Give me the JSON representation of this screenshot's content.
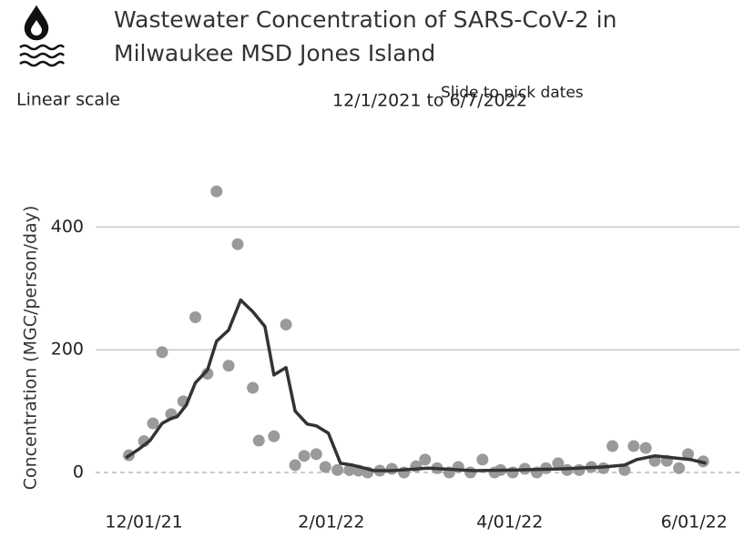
{
  "chart_data": {
    "type": "line",
    "title_lines": [
      "Wastewater Concentration of SARS-CoV-2 in",
      "Milwaukee MSD Jones Island"
    ],
    "scale_label": "Linear scale",
    "date_range": "12/1/2021 to 6/7/2022",
    "slider_label": "Slide to pick dates",
    "y_label": "Concentration (MGC/person/day)",
    "xlim": [
      "11/15/21",
      "06/16/22"
    ],
    "xticks": [
      "12/01/21",
      "2/01/22",
      "4/01/22",
      "6/01/22"
    ],
    "ylim": [
      -40,
      500
    ],
    "yticks": [
      0,
      200,
      400
    ],
    "grid": true,
    "series": [
      {
        "type": "scatter",
        "color": "#9a9a9a",
        "x": [
          "11/26/21",
          "12/01/21",
          "12/04/21",
          "12/07/21",
          "12/10/21",
          "12/14/21",
          "12/18/21",
          "12/22/21",
          "12/25/21",
          "12/29/21",
          "01/01/22",
          "01/06/22",
          "01/08/22",
          "01/13/22",
          "01/17/22",
          "01/20/22",
          "01/23/22",
          "01/27/22",
          "01/30/22",
          "02/03/22",
          "02/07/22",
          "02/10/22",
          "02/13/22",
          "02/17/22",
          "02/21/22",
          "02/25/22",
          "03/01/22",
          "03/04/22",
          "03/08/22",
          "03/12/22",
          "03/15/22",
          "03/19/22",
          "03/23/22",
          "03/27/22",
          "03/29/22",
          "04/02/22",
          "04/06/22",
          "04/10/22",
          "04/13/22",
          "04/17/22",
          "04/20/22",
          "04/24/22",
          "04/28/22",
          "05/02/22",
          "05/05/22",
          "05/09/22",
          "05/12/22",
          "05/16/22",
          "05/19/22",
          "05/23/22",
          "05/27/22",
          "05/30/22",
          "06/04/22"
        ],
        "values": [
          28,
          51,
          80,
          196,
          95,
          116,
          253,
          161,
          458,
          174,
          372,
          138,
          52,
          59,
          241,
          12,
          27,
          30,
          9,
          4,
          4,
          3,
          0,
          3,
          6,
          0,
          10,
          21,
          7,
          0,
          9,
          0,
          21,
          0,
          4,
          0,
          6,
          0,
          7,
          15,
          4,
          4,
          9,
          7,
          43,
          4,
          43,
          40,
          19,
          19,
          7,
          30,
          18
        ]
      },
      {
        "type": "line",
        "color": "#333333",
        "x": [
          "11/25/21",
          "11/29/21",
          "12/03/21",
          "12/07/21",
          "12/10/21",
          "12/12/21",
          "12/15/21",
          "12/18/21",
          "12/22/21",
          "12/25/21",
          "12/29/21",
          "01/02/22",
          "01/06/22",
          "01/10/22",
          "01/13/22",
          "01/17/22",
          "01/20/22",
          "01/24/22",
          "01/27/22",
          "01/31/22",
          "02/04/22",
          "02/08/22",
          "02/12/22",
          "02/15/22",
          "02/21/22",
          "03/05/22",
          "03/20/22",
          "04/04/22",
          "04/19/22",
          "05/02/22",
          "05/09/22",
          "05/13/22",
          "05/19/22",
          "05/25/22",
          "05/31/22",
          "06/05/22"
        ],
        "values": [
          24,
          37,
          52,
          80,
          88,
          91,
          110,
          146,
          167,
          214,
          232,
          281,
          262,
          238,
          159,
          171,
          100,
          79,
          76,
          64,
          15,
          12,
          7,
          3,
          3,
          7,
          3,
          4,
          6,
          9,
          12,
          21,
          27,
          24,
          21,
          15
        ]
      }
    ]
  }
}
